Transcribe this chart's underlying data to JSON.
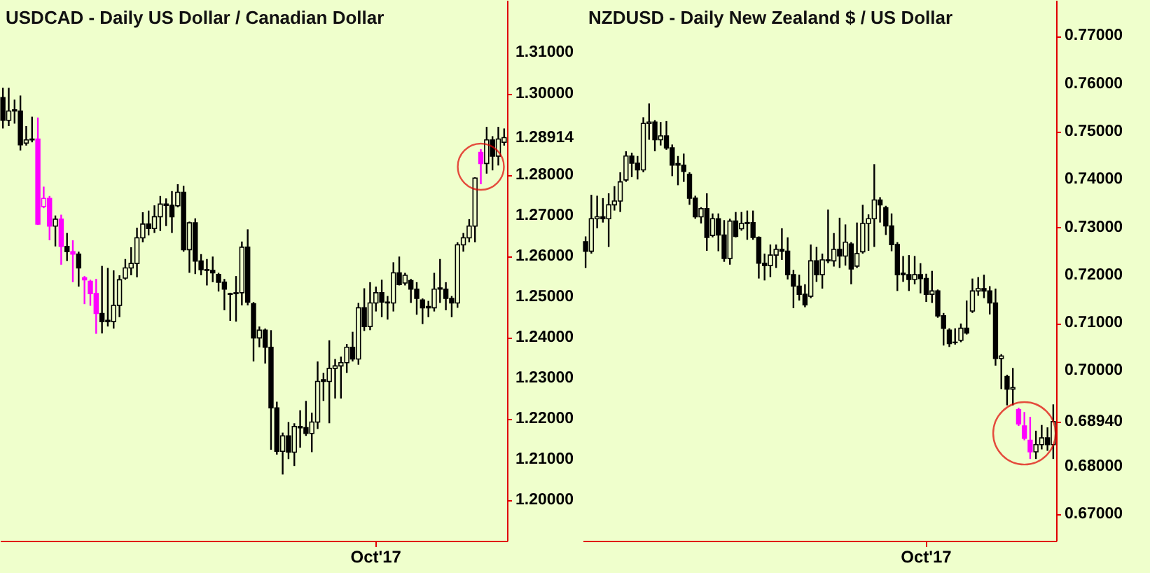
{
  "chart_data": [
    {
      "type": "candlestick",
      "title": "USDCAD - Daily US Dollar / Canadian Dollar",
      "categories": [
        null,
        null,
        null,
        null,
        null,
        null,
        null,
        null,
        null,
        null,
        null,
        null,
        null,
        null,
        null,
        null,
        null,
        null,
        null,
        null,
        null,
        null,
        null,
        null,
        null,
        null,
        null,
        null,
        null,
        null,
        null,
        null,
        null,
        null,
        null,
        null,
        null,
        null,
        null,
        null,
        null,
        null,
        null,
        null,
        null,
        null,
        null,
        null,
        null,
        null,
        null,
        null,
        null,
        null,
        null,
        null,
        null,
        null,
        null,
        null,
        null,
        null,
        null,
        null,
        "Oct'17",
        null,
        null,
        null,
        null,
        null,
        null,
        null,
        null,
        null,
        null,
        null,
        null,
        null,
        null,
        null,
        null,
        null,
        null,
        null,
        null,
        null,
        null
      ],
      "ohlc": [
        [
          1.299,
          1.3014,
          1.2914,
          1.2934
        ],
        [
          1.2934,
          1.3014,
          1.292,
          1.2957
        ],
        [
          1.296,
          1.2985,
          1.2926,
          1.2957
        ],
        [
          1.2957,
          1.2995,
          1.286,
          1.2874
        ],
        [
          1.2878,
          1.292,
          1.2872,
          1.2886
        ],
        [
          1.2886,
          1.2943,
          1.288,
          1.2888
        ],
        [
          1.2888,
          1.2941,
          1.2677,
          1.2679
        ],
        [
          1.2722,
          1.2771,
          1.2718,
          1.2742
        ],
        [
          1.2742,
          1.2748,
          1.2639,
          1.2674
        ],
        [
          1.2674,
          1.27,
          1.2624,
          1.2691
        ],
        [
          1.2691,
          1.2702,
          1.2579,
          1.2624
        ],
        [
          1.2624,
          1.2657,
          1.2588,
          1.2611
        ],
        [
          1.2611,
          1.2639,
          1.2536,
          1.2605
        ],
        [
          1.2605,
          1.2611,
          1.2525,
          1.2571
        ],
        [
          1.2547,
          1.2551,
          1.2482,
          1.2542
        ],
        [
          1.2538,
          1.2542,
          1.2478,
          1.2508
        ],
        [
          1.2508,
          1.2544,
          1.2409,
          1.2459
        ],
        [
          1.2459,
          1.2576,
          1.241,
          1.2439
        ],
        [
          1.2442,
          1.2571,
          1.2427,
          1.2439
        ],
        [
          1.2439,
          1.2565,
          1.2422,
          1.2479
        ],
        [
          1.2479,
          1.2553,
          1.245,
          1.2542
        ],
        [
          1.2546,
          1.2593,
          1.2542,
          1.2571
        ],
        [
          1.2571,
          1.2622,
          1.2553,
          1.2582
        ],
        [
          1.2582,
          1.267,
          1.2548,
          1.2645
        ],
        [
          1.2645,
          1.2708,
          1.2634,
          1.2679
        ],
        [
          1.2679,
          1.2712,
          1.2651,
          1.2668
        ],
        [
          1.2668,
          1.2725,
          1.2657,
          1.2697
        ],
        [
          1.2697,
          1.2748,
          1.2662,
          1.2728
        ],
        [
          1.2728,
          1.2742,
          1.2674,
          1.2725
        ],
        [
          1.2725,
          1.276,
          1.2657,
          1.2697
        ],
        [
          1.2724,
          1.2777,
          1.272,
          1.2757
        ],
        [
          1.2757,
          1.2773,
          1.2611,
          1.2616
        ],
        [
          1.2616,
          1.2685,
          1.2559,
          1.2682
        ],
        [
          1.2682,
          1.2693,
          1.2556,
          1.2588
        ],
        [
          1.2588,
          1.2605,
          1.2553,
          1.2567
        ],
        [
          1.2567,
          1.2593,
          1.2528,
          1.2565
        ],
        [
          1.2565,
          1.2599,
          1.2536,
          1.2559
        ],
        [
          1.2555,
          1.2559,
          1.2513,
          1.2536
        ],
        [
          1.2536,
          1.2544,
          1.2467,
          1.2519
        ],
        [
          1.2506,
          1.251,
          1.2441,
          1.2508
        ],
        [
          1.2508,
          1.2551,
          1.2439,
          1.251
        ],
        [
          1.251,
          1.2636,
          1.2479,
          1.2622
        ],
        [
          1.2622,
          1.2666,
          1.2479,
          1.2487
        ],
        [
          1.2483,
          1.2487,
          1.2341,
          1.2399
        ],
        [
          1.2399,
          1.2427,
          1.2376,
          1.2418
        ],
        [
          1.2418,
          1.2422,
          1.2336,
          1.2376
        ],
        [
          1.2376,
          1.2418,
          1.2124,
          1.2227
        ],
        [
          1.2227,
          1.2242,
          1.2112,
          1.212
        ],
        [
          1.212,
          1.2166,
          1.2063,
          1.2158
        ],
        [
          1.2158,
          1.2192,
          1.2101,
          1.2118
        ],
        [
          1.2118,
          1.2189,
          1.2084,
          1.2181
        ],
        [
          1.2181,
          1.2221,
          1.2129,
          1.2178
        ],
        [
          1.2178,
          1.2244,
          1.2158,
          1.2164
        ],
        [
          1.2164,
          1.2215,
          1.2118,
          1.2192
        ],
        [
          1.2192,
          1.2341,
          1.2175,
          1.2292
        ],
        [
          1.2296,
          1.2313,
          1.2244,
          1.2292
        ],
        [
          1.2292,
          1.2393,
          1.2189,
          1.2324
        ],
        [
          1.2324,
          1.2347,
          1.225,
          1.233
        ],
        [
          1.233,
          1.2353,
          1.225,
          1.2338
        ],
        [
          1.2338,
          1.2384,
          1.2313,
          1.2376
        ],
        [
          1.2376,
          1.2414,
          1.2341,
          1.2347
        ],
        [
          1.2347,
          1.2485,
          1.2333,
          1.2473
        ],
        [
          1.2473,
          1.2521,
          1.2416,
          1.2427
        ],
        [
          1.2427,
          1.2536,
          1.2418,
          1.2485
        ],
        [
          1.2485,
          1.2525,
          1.2464,
          1.251
        ],
        [
          1.251,
          1.2542,
          1.245,
          1.2487
        ],
        [
          1.2487,
          1.2502,
          1.2444,
          1.2485
        ],
        [
          1.2485,
          1.2585,
          1.2464,
          1.2559
        ],
        [
          1.2559,
          1.2599,
          1.2528,
          1.253
        ],
        [
          1.2534,
          1.2559,
          1.2528,
          1.2553
        ],
        [
          1.254,
          1.2544,
          1.2485,
          1.2519
        ],
        [
          1.2519,
          1.2536,
          1.2456,
          1.2496
        ],
        [
          1.2492,
          1.2496,
          1.2433,
          1.2473
        ],
        [
          1.2476,
          1.249,
          1.245,
          1.2473
        ],
        [
          1.2473,
          1.2559,
          1.2464,
          1.2519
        ],
        [
          1.2522,
          1.2593,
          1.2485,
          1.2519
        ],
        [
          1.2519,
          1.2536,
          1.2467,
          1.2496
        ],
        [
          1.2496,
          1.2502,
          1.245,
          1.2485
        ],
        [
          1.2485,
          1.2634,
          1.2473,
          1.2628
        ],
        [
          1.2628,
          1.2657,
          1.2611,
          1.2645
        ],
        [
          1.2645,
          1.2691,
          1.2634,
          1.2674
        ],
        [
          1.2674,
          1.2794,
          1.2634,
          1.2792
        ],
        [
          1.2855,
          1.2863,
          1.2777,
          1.2828
        ],
        [
          1.2828,
          1.2918,
          1.2803,
          1.2886
        ],
        [
          1.2886,
          1.2895,
          1.2811,
          1.2846
        ],
        [
          1.2846,
          1.2918,
          1.2823,
          1.2888
        ],
        [
          1.288,
          1.2914,
          1.2872,
          1.28914
        ]
      ],
      "colors": [
        "#000000",
        "#000000",
        "#000000",
        "#000000",
        "#000000",
        "#000000",
        "#ff00ff",
        "#ff00ff",
        "#ff00ff",
        "#000000",
        "#ff00ff",
        "#000000",
        "#ff00ff",
        "#000000",
        "#ff00ff",
        "#ff00ff",
        "#ff00ff",
        "#000000",
        "#000000",
        "#000000",
        "#000000",
        "#000000",
        "#000000",
        "#000000",
        "#000000",
        "#000000",
        "#000000",
        "#000000",
        "#000000",
        "#000000",
        "#000000",
        "#000000",
        "#000000",
        "#000000",
        "#000000",
        "#000000",
        "#000000",
        "#000000",
        "#000000",
        "#000000",
        "#000000",
        "#000000",
        "#000000",
        "#000000",
        "#000000",
        "#000000",
        "#000000",
        "#000000",
        "#000000",
        "#000000",
        "#000000",
        "#000000",
        "#000000",
        "#000000",
        "#000000",
        "#000000",
        "#000000",
        "#000000",
        "#000000",
        "#000000",
        "#000000",
        "#000000",
        "#000000",
        "#000000",
        "#000000",
        "#000000",
        "#000000",
        "#000000",
        "#000000",
        "#000000",
        "#000000",
        "#000000",
        "#000000",
        "#000000",
        "#000000",
        "#000000",
        "#000000",
        "#000000",
        "#000000",
        "#000000",
        "#000000",
        "#000000",
        "#ff00ff",
        "#000000",
        "#000000",
        "#000000",
        "#000000"
      ],
      "ylim": [
        1.19,
        1.323
      ],
      "yticks": [
        {
          "value": 1.2,
          "label": "1.20000"
        },
        {
          "value": 1.21,
          "label": "1.21000"
        },
        {
          "value": 1.22,
          "label": "1.22000"
        },
        {
          "value": 1.23,
          "label": "1.23000"
        },
        {
          "value": 1.24,
          "label": "1.24000"
        },
        {
          "value": 1.25,
          "label": "1.25000"
        },
        {
          "value": 1.26,
          "label": "1.26000"
        },
        {
          "value": 1.27,
          "label": "1.27000"
        },
        {
          "value": 1.28,
          "label": "1.28000"
        },
        {
          "value": 1.28914,
          "label": "1.28914"
        },
        {
          "value": 1.3,
          "label": "1.30000"
        },
        {
          "value": 1.31,
          "label": "1.31000"
        }
      ]
    },
    {
      "type": "candlestick",
      "title": "NZDUSD - Daily New Zealand $ / US Dollar",
      "categories": [
        null,
        null,
        null,
        null,
        null,
        null,
        null,
        null,
        null,
        null,
        null,
        null,
        null,
        null,
        null,
        null,
        null,
        null,
        null,
        null,
        null,
        null,
        null,
        null,
        null,
        null,
        null,
        null,
        null,
        null,
        null,
        null,
        null,
        null,
        null,
        null,
        null,
        null,
        null,
        null,
        null,
        null,
        null,
        null,
        null,
        null,
        null,
        null,
        null,
        null,
        null,
        null,
        null,
        null,
        null,
        null,
        null,
        null,
        null,
        "Oct'17",
        null,
        null,
        null,
        null,
        null,
        null,
        null,
        null,
        null,
        null,
        null,
        null,
        null,
        null,
        null,
        null,
        null,
        null,
        null,
        null,
        null,
        null
      ],
      "ohlc": [
        [
          0.727,
          0.7281,
          0.7215,
          0.725
        ],
        [
          0.725,
          0.7368,
          0.7245,
          0.7318
        ],
        [
          0.7318,
          0.7366,
          0.7298,
          0.7322
        ],
        [
          0.7322,
          0.7361,
          0.731,
          0.7318
        ],
        [
          0.7318,
          0.7371,
          0.7259,
          0.7347
        ],
        [
          0.7347,
          0.7386,
          0.7335,
          0.7355
        ],
        [
          0.7355,
          0.7415,
          0.7332,
          0.7395
        ],
        [
          0.7399,
          0.7459,
          0.7395,
          0.7449
        ],
        [
          0.7449,
          0.7456,
          0.7405,
          0.7434
        ],
        [
          0.7434,
          0.7449,
          0.74,
          0.742
        ],
        [
          0.742,
          0.753,
          0.7415,
          0.7517
        ],
        [
          0.7517,
          0.7559,
          0.7483,
          0.752
        ],
        [
          0.752,
          0.7524,
          0.7459,
          0.7483
        ],
        [
          0.7483,
          0.752,
          0.7471,
          0.7491
        ],
        [
          0.7491,
          0.7522,
          0.7462,
          0.7466
        ],
        [
          0.7466,
          0.7473,
          0.7407,
          0.743
        ],
        [
          0.7433,
          0.7449,
          0.7388,
          0.743
        ],
        [
          0.743,
          0.7454,
          0.7395,
          0.7417
        ],
        [
          0.7411,
          0.7415,
          0.7347,
          0.7361
        ],
        [
          0.7361,
          0.7366,
          0.7318,
          0.7322
        ],
        [
          0.7322,
          0.7342,
          0.7308,
          0.7339
        ],
        [
          0.7339,
          0.7371,
          0.7251,
          0.7279
        ],
        [
          0.7283,
          0.7329,
          0.7279,
          0.7318
        ],
        [
          0.7318,
          0.7329,
          0.725,
          0.7284
        ],
        [
          0.7284,
          0.7315,
          0.7228,
          0.7235
        ],
        [
          0.7235,
          0.7318,
          0.7222,
          0.7313
        ],
        [
          0.7313,
          0.7332,
          0.7279,
          0.7281
        ],
        [
          0.7297,
          0.7332,
          0.7293,
          0.7308
        ],
        [
          0.7308,
          0.7335,
          0.7274,
          0.731
        ],
        [
          0.731,
          0.7335,
          0.7274,
          0.7279
        ],
        [
          0.7279,
          0.7281,
          0.7193,
          0.7225
        ],
        [
          0.7225,
          0.7245,
          0.7189,
          0.722
        ],
        [
          0.722,
          0.7264,
          0.7196,
          0.7242
        ],
        [
          0.7242,
          0.7264,
          0.7215,
          0.7254
        ],
        [
          0.7254,
          0.7298,
          0.7232,
          0.725
        ],
        [
          0.725,
          0.7279,
          0.7191,
          0.7201
        ],
        [
          0.7201,
          0.7211,
          0.7131,
          0.7177
        ],
        [
          0.7177,
          0.7201,
          0.7147,
          0.716
        ],
        [
          0.716,
          0.7181,
          0.7133,
          0.7138
        ],
        [
          0.7156,
          0.7264,
          0.7152,
          0.723
        ],
        [
          0.723,
          0.7259,
          0.7186,
          0.7201
        ],
        [
          0.7201,
          0.7245,
          0.7172,
          0.7232
        ],
        [
          0.7232,
          0.7337,
          0.7225,
          0.723
        ],
        [
          0.723,
          0.7288,
          0.7218,
          0.7254
        ],
        [
          0.7254,
          0.732,
          0.7215,
          0.724
        ],
        [
          0.724,
          0.7306,
          0.722,
          0.7269
        ],
        [
          0.7265,
          0.7269,
          0.7181,
          0.7213
        ],
        [
          0.7219,
          0.731,
          0.7215,
          0.7245
        ],
        [
          0.7249,
          0.7347,
          0.7245,
          0.7308
        ],
        [
          0.7308,
          0.7327,
          0.7251,
          0.7318
        ],
        [
          0.7318,
          0.7432,
          0.7259,
          0.7357
        ],
        [
          0.7357,
          0.7363,
          0.731,
          0.7347
        ],
        [
          0.7341,
          0.7345,
          0.7284,
          0.7303
        ],
        [
          0.7303,
          0.7329,
          0.725,
          0.7264
        ],
        [
          0.7264,
          0.7269,
          0.7167,
          0.7201
        ],
        [
          0.7204,
          0.724,
          0.7186,
          0.7201
        ],
        [
          0.7201,
          0.7242,
          0.7167,
          0.7191
        ],
        [
          0.7191,
          0.724,
          0.7181,
          0.7201
        ],
        [
          0.7201,
          0.7225,
          0.7162,
          0.7193
        ],
        [
          0.7193,
          0.7203,
          0.7144,
          0.716
        ],
        [
          0.716,
          0.7209,
          0.7142,
          0.7167
        ],
        [
          0.7167,
          0.717,
          0.7111,
          0.7115
        ],
        [
          0.7115,
          0.7121,
          0.7053,
          0.7089
        ],
        [
          0.7085,
          0.7089,
          0.705,
          0.7057
        ],
        [
          0.7059,
          0.7089,
          0.7055,
          0.706
        ],
        [
          0.7064,
          0.7099,
          0.706,
          0.7089
        ],
        [
          0.7089,
          0.7147,
          0.7076,
          0.7079
        ],
        [
          0.7125,
          0.7193,
          0.7121,
          0.7167
        ],
        [
          0.7167,
          0.7196,
          0.7157,
          0.7172
        ],
        [
          0.7172,
          0.7201,
          0.7152,
          0.7167
        ],
        [
          0.7167,
          0.7177,
          0.7118,
          0.7142
        ],
        [
          0.7142,
          0.7172,
          0.7011,
          0.7026
        ],
        [
          0.7026,
          0.7035,
          0.6962,
          0.7031
        ],
        [
          0.6988,
          0.6992,
          0.6928,
          0.6962
        ],
        [
          0.6962,
          0.7006,
          0.6928,
          0.6965
        ],
        [
          0.6919,
          0.6923,
          0.6885,
          0.6889
        ],
        [
          0.6885,
          0.6914,
          0.6855,
          0.6859
        ],
        [
          0.6855,
          0.6904,
          0.6816,
          0.6831
        ],
        [
          0.6831,
          0.6875,
          0.6816,
          0.6846
        ],
        [
          0.6846,
          0.6887,
          0.6836,
          0.686
        ],
        [
          0.686,
          0.6882,
          0.6833,
          0.6846
        ],
        [
          0.6846,
          0.693,
          0.6816,
          0.6894
        ]
      ],
      "colors": [
        "#000000",
        "#000000",
        "#000000",
        "#000000",
        "#000000",
        "#000000",
        "#000000",
        "#000000",
        "#000000",
        "#000000",
        "#000000",
        "#000000",
        "#000000",
        "#000000",
        "#000000",
        "#000000",
        "#000000",
        "#000000",
        "#000000",
        "#000000",
        "#000000",
        "#000000",
        "#000000",
        "#000000",
        "#000000",
        "#000000",
        "#000000",
        "#000000",
        "#000000",
        "#000000",
        "#000000",
        "#000000",
        "#000000",
        "#000000",
        "#000000",
        "#000000",
        "#000000",
        "#000000",
        "#000000",
        "#000000",
        "#000000",
        "#000000",
        "#000000",
        "#000000",
        "#000000",
        "#000000",
        "#000000",
        "#000000",
        "#000000",
        "#000000",
        "#000000",
        "#000000",
        "#000000",
        "#000000",
        "#000000",
        "#000000",
        "#000000",
        "#000000",
        "#000000",
        "#000000",
        "#000000",
        "#000000",
        "#000000",
        "#000000",
        "#000000",
        "#000000",
        "#000000",
        "#000000",
        "#000000",
        "#000000",
        "#000000",
        "#000000",
        "#000000",
        "#000000",
        "#000000",
        "#ff00ff",
        "#ff00ff",
        "#ff00ff",
        "#000000",
        "#000000",
        "#000000",
        "#000000"
      ],
      "ylim": [
        0.6645,
        0.7775
      ],
      "yticks": [
        {
          "value": 0.67,
          "label": "0.67000"
        },
        {
          "value": 0.68,
          "label": "0.68000"
        },
        {
          "value": 0.6894,
          "label": "0.68940"
        },
        {
          "value": 0.7,
          "label": "0.70000"
        },
        {
          "value": 0.71,
          "label": "0.71000"
        },
        {
          "value": 0.72,
          "label": "0.72000"
        },
        {
          "value": 0.73,
          "label": "0.73000"
        },
        {
          "value": 0.74,
          "label": "0.74000"
        },
        {
          "value": 0.75,
          "label": "0.75000"
        },
        {
          "value": 0.76,
          "label": "0.76000"
        },
        {
          "value": 0.77,
          "label": "0.77000"
        }
      ]
    }
  ]
}
